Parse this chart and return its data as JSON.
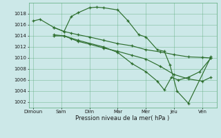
{
  "xlabel": "Pression niveau de la mer( hPa )",
  "background_color": "#cce8e8",
  "grid_color": "#5aaa7a",
  "line_color": "#2d6e2d",
  "ylim": [
    1001.0,
    1020.0
  ],
  "yticks": [
    1002,
    1004,
    1006,
    1008,
    1010,
    1012,
    1014,
    1016,
    1018
  ],
  "xtick_positions": [
    0,
    1,
    2,
    3,
    4,
    5,
    6
  ],
  "xtick_labels": [
    "Dimoun",
    "Sam",
    "Dim",
    "Mar",
    "Mer",
    "Jeu",
    "Ven"
  ],
  "xlim": [
    -0.15,
    6.5
  ],
  "series": [
    {
      "x": [
        0.0,
        0.25,
        0.75,
        1.1,
        1.35,
        1.6,
        2.0,
        2.25,
        2.5,
        3.0,
        3.35,
        3.75,
        4.0,
        4.4,
        4.65,
        4.85,
        5.1,
        5.5,
        6.3
      ],
      "y": [
        1016.7,
        1017.0,
        1015.5,
        1014.8,
        1017.5,
        1018.2,
        1019.1,
        1019.2,
        1019.1,
        1018.7,
        1016.8,
        1014.2,
        1013.8,
        1011.5,
        1011.2,
        1008.7,
        1004.0,
        1001.8,
        1010.2
      ]
    },
    {
      "x": [
        0.75,
        1.1,
        1.35,
        1.6,
        2.0,
        2.5,
        3.0,
        3.5,
        4.0,
        4.5,
        5.0,
        5.5,
        6.0,
        6.3
      ],
      "y": [
        1015.5,
        1014.8,
        1014.5,
        1014.2,
        1013.8,
        1013.2,
        1012.6,
        1012.2,
        1011.5,
        1011.1,
        1010.6,
        1010.2,
        1010.1,
        1010.0
      ]
    },
    {
      "x": [
        0.75,
        1.1,
        1.35,
        1.6,
        2.0,
        2.5,
        3.0,
        3.5,
        4.0,
        4.5,
        5.0,
        5.5,
        6.0,
        6.3
      ],
      "y": [
        1014.2,
        1014.0,
        1013.5,
        1013.0,
        1012.5,
        1011.8,
        1011.2,
        1010.5,
        1009.8,
        1008.5,
        1007.0,
        1006.2,
        1005.8,
        1006.5
      ]
    },
    {
      "x": [
        0.75,
        1.1,
        1.6,
        2.5,
        3.0,
        3.5,
        4.0,
        4.4,
        4.65,
        4.9,
        5.15,
        5.5,
        5.9,
        6.3
      ],
      "y": [
        1014.0,
        1014.0,
        1013.2,
        1012.0,
        1011.0,
        1009.0,
        1007.5,
        1005.8,
        1004.2,
        1006.5,
        1006.0,
        1006.5,
        1007.5,
        1010.0
      ]
    }
  ]
}
